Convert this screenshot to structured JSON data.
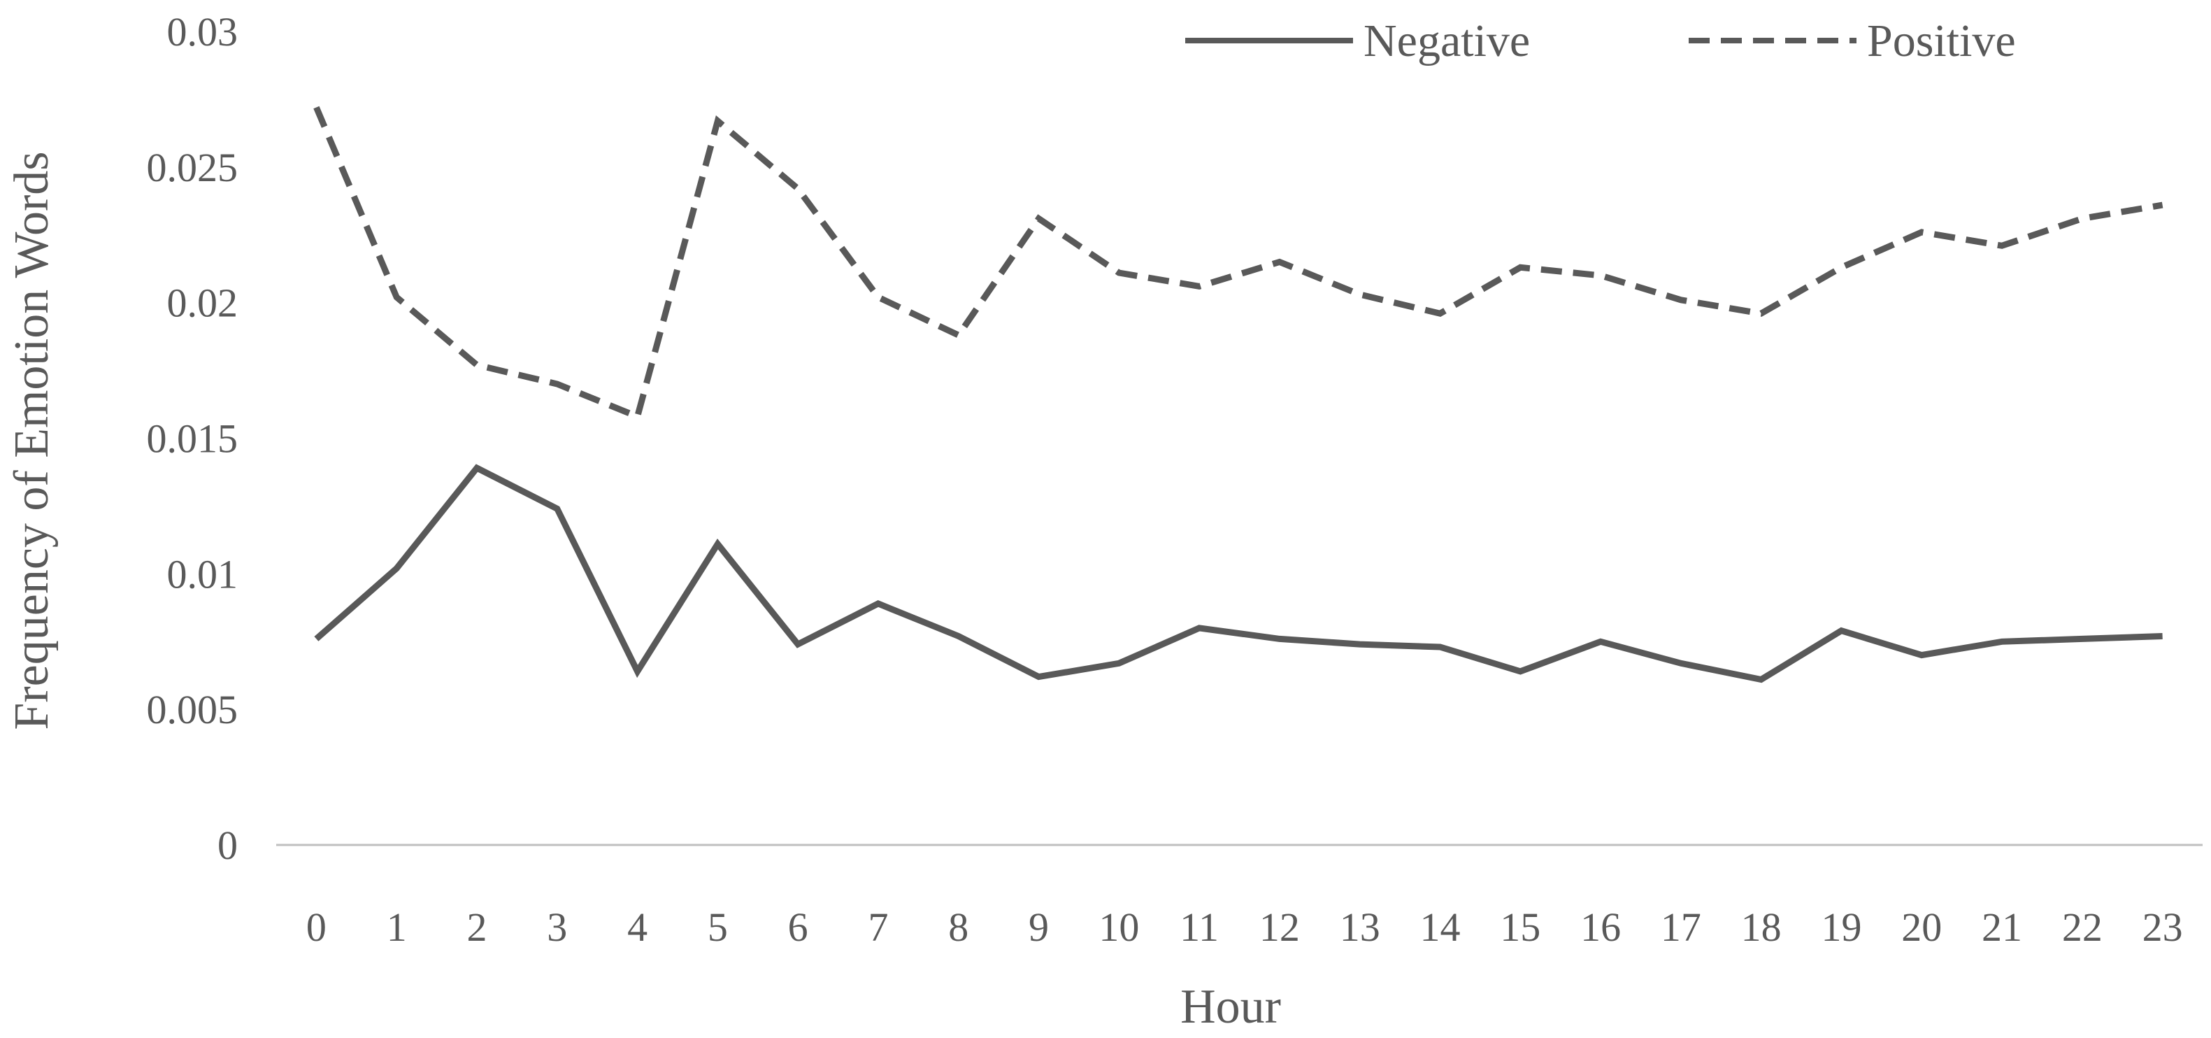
{
  "chart_data": {
    "type": "line",
    "title": "",
    "xlabel": "Hour",
    "ylabel": "Frequency of Emotion Words",
    "x": [
      0,
      1,
      2,
      3,
      4,
      5,
      6,
      7,
      8,
      9,
      10,
      11,
      12,
      13,
      14,
      15,
      16,
      17,
      18,
      19,
      20,
      21,
      22,
      23
    ],
    "ylim": [
      0,
      0.03
    ],
    "yticks": [
      "0",
      "0.005",
      "0.01",
      "0.015",
      "0.02",
      "0.025",
      "0.03"
    ],
    "yticks_values": [
      0,
      0.005,
      0.01,
      0.015,
      0.02,
      0.025,
      0.03
    ],
    "grid": false,
    "legend": "top-right",
    "series": [
      {
        "name": "Negative",
        "style": "solid",
        "color": "#595959",
        "values": [
          0.0076,
          0.0102,
          0.0139,
          0.0124,
          0.0064,
          0.0111,
          0.0074,
          0.0089,
          0.0077,
          0.0062,
          0.0067,
          0.008,
          0.0076,
          0.0074,
          0.0073,
          0.0064,
          0.0075,
          0.0067,
          0.0061,
          0.0079,
          0.007,
          0.0075,
          0.0076,
          0.0077
        ]
      },
      {
        "name": "Positive",
        "style": "dashed",
        "color": "#595959",
        "values": [
          0.0272,
          0.0202,
          0.0177,
          0.017,
          0.0158,
          0.0267,
          0.0242,
          0.0202,
          0.0188,
          0.0231,
          0.0211,
          0.0206,
          0.0215,
          0.0203,
          0.0196,
          0.0213,
          0.021,
          0.0201,
          0.0196,
          0.0213,
          0.0226,
          0.0221,
          0.0231,
          0.0236
        ]
      }
    ]
  }
}
